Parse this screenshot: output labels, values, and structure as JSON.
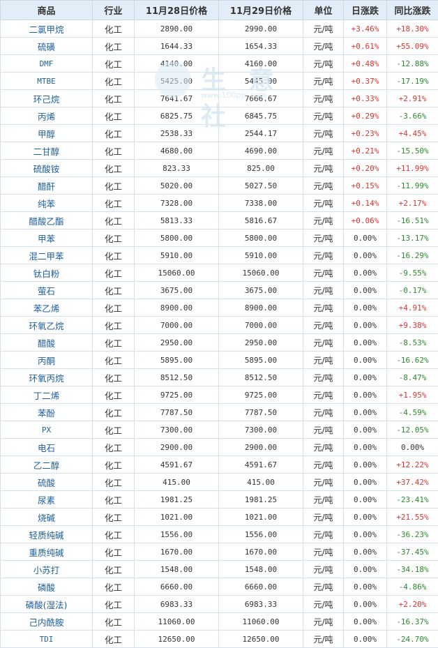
{
  "colors": {
    "header_bg": "#e3edf7",
    "name_link": "#1d5e9b",
    "up": "#e0322e",
    "down": "#2a8a2a"
  },
  "watermark": {
    "text": "生 意 社",
    "sub": "www.100ppi.com"
  },
  "headers": [
    "商品",
    "行业",
    "11月28日价格",
    "11月29日价格",
    "单位",
    "日涨跌",
    "同比涨跌"
  ],
  "rows": [
    {
      "name": "二氯甲烷",
      "industry": "化工",
      "p1": "2890.00",
      "p2": "2990.00",
      "unit": "元/吨",
      "day": "+3.46%",
      "yoy": "+18.30%"
    },
    {
      "name": "硫磺",
      "industry": "化工",
      "p1": "1644.33",
      "p2": "1654.33",
      "unit": "元/吨",
      "day": "+0.61%",
      "yoy": "+55.09%"
    },
    {
      "name": "DMF",
      "industry": "化工",
      "p1": "4140.00",
      "p2": "4160.00",
      "unit": "元/吨",
      "day": "+0.48%",
      "yoy": "-12.88%"
    },
    {
      "name": "MTBE",
      "industry": "化工",
      "p1": "5425.00",
      "p2": "5445.00",
      "unit": "元/吨",
      "day": "+0.37%",
      "yoy": "-17.19%"
    },
    {
      "name": "环己烷",
      "industry": "化工",
      "p1": "7641.67",
      "p2": "7666.67",
      "unit": "元/吨",
      "day": "+0.33%",
      "yoy": "+2.91%"
    },
    {
      "name": "丙烯",
      "industry": "化工",
      "p1": "6825.75",
      "p2": "6845.75",
      "unit": "元/吨",
      "day": "+0.29%",
      "yoy": "-3.66%"
    },
    {
      "name": "甲醇",
      "industry": "化工",
      "p1": "2538.33",
      "p2": "2544.17",
      "unit": "元/吨",
      "day": "+0.23%",
      "yoy": "+4.45%"
    },
    {
      "name": "二甘醇",
      "industry": "化工",
      "p1": "4680.00",
      "p2": "4690.00",
      "unit": "元/吨",
      "day": "+0.21%",
      "yoy": "-15.50%"
    },
    {
      "name": "硫酸铵",
      "industry": "化工",
      "p1": "823.33",
      "p2": "825.00",
      "unit": "元/吨",
      "day": "+0.20%",
      "yoy": "+11.99%"
    },
    {
      "name": "醋酐",
      "industry": "化工",
      "p1": "5020.00",
      "p2": "5027.50",
      "unit": "元/吨",
      "day": "+0.15%",
      "yoy": "-11.99%"
    },
    {
      "name": "纯苯",
      "industry": "化工",
      "p1": "7328.00",
      "p2": "7338.00",
      "unit": "元/吨",
      "day": "+0.14%",
      "yoy": "+2.17%"
    },
    {
      "name": "醋酸乙酯",
      "industry": "化工",
      "p1": "5813.33",
      "p2": "5816.67",
      "unit": "元/吨",
      "day": "+0.06%",
      "yoy": "-16.51%"
    },
    {
      "name": "甲苯",
      "industry": "化工",
      "p1": "5800.00",
      "p2": "5800.00",
      "unit": "元/吨",
      "day": "0.00%",
      "yoy": "-13.17%"
    },
    {
      "name": "混二甲苯",
      "industry": "化工",
      "p1": "5910.00",
      "p2": "5910.00",
      "unit": "元/吨",
      "day": "0.00%",
      "yoy": "-16.29%"
    },
    {
      "name": "钛白粉",
      "industry": "化工",
      "p1": "15060.00",
      "p2": "15060.00",
      "unit": "元/吨",
      "day": "0.00%",
      "yoy": "-9.55%"
    },
    {
      "name": "萤石",
      "industry": "化工",
      "p1": "3675.00",
      "p2": "3675.00",
      "unit": "元/吨",
      "day": "0.00%",
      "yoy": "-0.17%"
    },
    {
      "name": "苯乙烯",
      "industry": "化工",
      "p1": "8900.00",
      "p2": "8900.00",
      "unit": "元/吨",
      "day": "0.00%",
      "yoy": "+4.91%"
    },
    {
      "name": "环氧乙烷",
      "industry": "化工",
      "p1": "7000.00",
      "p2": "7000.00",
      "unit": "元/吨",
      "day": "0.00%",
      "yoy": "+9.38%"
    },
    {
      "name": "醋酸",
      "industry": "化工",
      "p1": "2950.00",
      "p2": "2950.00",
      "unit": "元/吨",
      "day": "0.00%",
      "yoy": "-8.53%"
    },
    {
      "name": "丙酮",
      "industry": "化工",
      "p1": "5895.00",
      "p2": "5895.00",
      "unit": "元/吨",
      "day": "0.00%",
      "yoy": "-16.62%"
    },
    {
      "name": "环氧丙烷",
      "industry": "化工",
      "p1": "8512.50",
      "p2": "8512.50",
      "unit": "元/吨",
      "day": "0.00%",
      "yoy": "-8.47%"
    },
    {
      "name": "丁二烯",
      "industry": "化工",
      "p1": "9725.00",
      "p2": "9725.00",
      "unit": "元/吨",
      "day": "0.00%",
      "yoy": "+1.95%"
    },
    {
      "name": "苯酚",
      "industry": "化工",
      "p1": "7787.50",
      "p2": "7787.50",
      "unit": "元/吨",
      "day": "0.00%",
      "yoy": "-4.59%"
    },
    {
      "name": "PX",
      "industry": "化工",
      "p1": "7300.00",
      "p2": "7300.00",
      "unit": "元/吨",
      "day": "0.00%",
      "yoy": "-12.05%"
    },
    {
      "name": "电石",
      "industry": "化工",
      "p1": "2900.00",
      "p2": "2900.00",
      "unit": "元/吨",
      "day": "0.00%",
      "yoy": "0.00%"
    },
    {
      "name": "乙二醇",
      "industry": "化工",
      "p1": "4591.67",
      "p2": "4591.67",
      "unit": "元/吨",
      "day": "0.00%",
      "yoy": "+12.22%"
    },
    {
      "name": "硫酸",
      "industry": "化工",
      "p1": "415.00",
      "p2": "415.00",
      "unit": "元/吨",
      "day": "0.00%",
      "yoy": "+37.42%"
    },
    {
      "name": "尿素",
      "industry": "化工",
      "p1": "1981.25",
      "p2": "1981.25",
      "unit": "元/吨",
      "day": "0.00%",
      "yoy": "-23.41%"
    },
    {
      "name": "烧碱",
      "industry": "化工",
      "p1": "1021.00",
      "p2": "1021.00",
      "unit": "元/吨",
      "day": "0.00%",
      "yoy": "+21.55%"
    },
    {
      "name": "轻质纯碱",
      "industry": "化工",
      "p1": "1556.00",
      "p2": "1556.00",
      "unit": "元/吨",
      "day": "0.00%",
      "yoy": "-36.23%"
    },
    {
      "name": "重质纯碱",
      "industry": "化工",
      "p1": "1670.00",
      "p2": "1670.00",
      "unit": "元/吨",
      "day": "0.00%",
      "yoy": "-37.45%"
    },
    {
      "name": "小苏打",
      "industry": "化工",
      "p1": "1548.00",
      "p2": "1548.00",
      "unit": "元/吨",
      "day": "0.00%",
      "yoy": "-34.18%"
    },
    {
      "name": "磷酸",
      "industry": "化工",
      "p1": "6660.00",
      "p2": "6660.00",
      "unit": "元/吨",
      "day": "0.00%",
      "yoy": "-4.86%"
    },
    {
      "name": "磷酸(湿法)",
      "industry": "化工",
      "p1": "6983.33",
      "p2": "6983.33",
      "unit": "元/吨",
      "day": "0.00%",
      "yoy": "+2.20%"
    },
    {
      "name": "己内酰胺",
      "industry": "化工",
      "p1": "11060.00",
      "p2": "11060.00",
      "unit": "元/吨",
      "day": "0.00%",
      "yoy": "-16.37%"
    },
    {
      "name": "TDI",
      "industry": "化工",
      "p1": "12650.00",
      "p2": "12650.00",
      "unit": "元/吨",
      "day": "0.00%",
      "yoy": "-24.70%"
    }
  ]
}
